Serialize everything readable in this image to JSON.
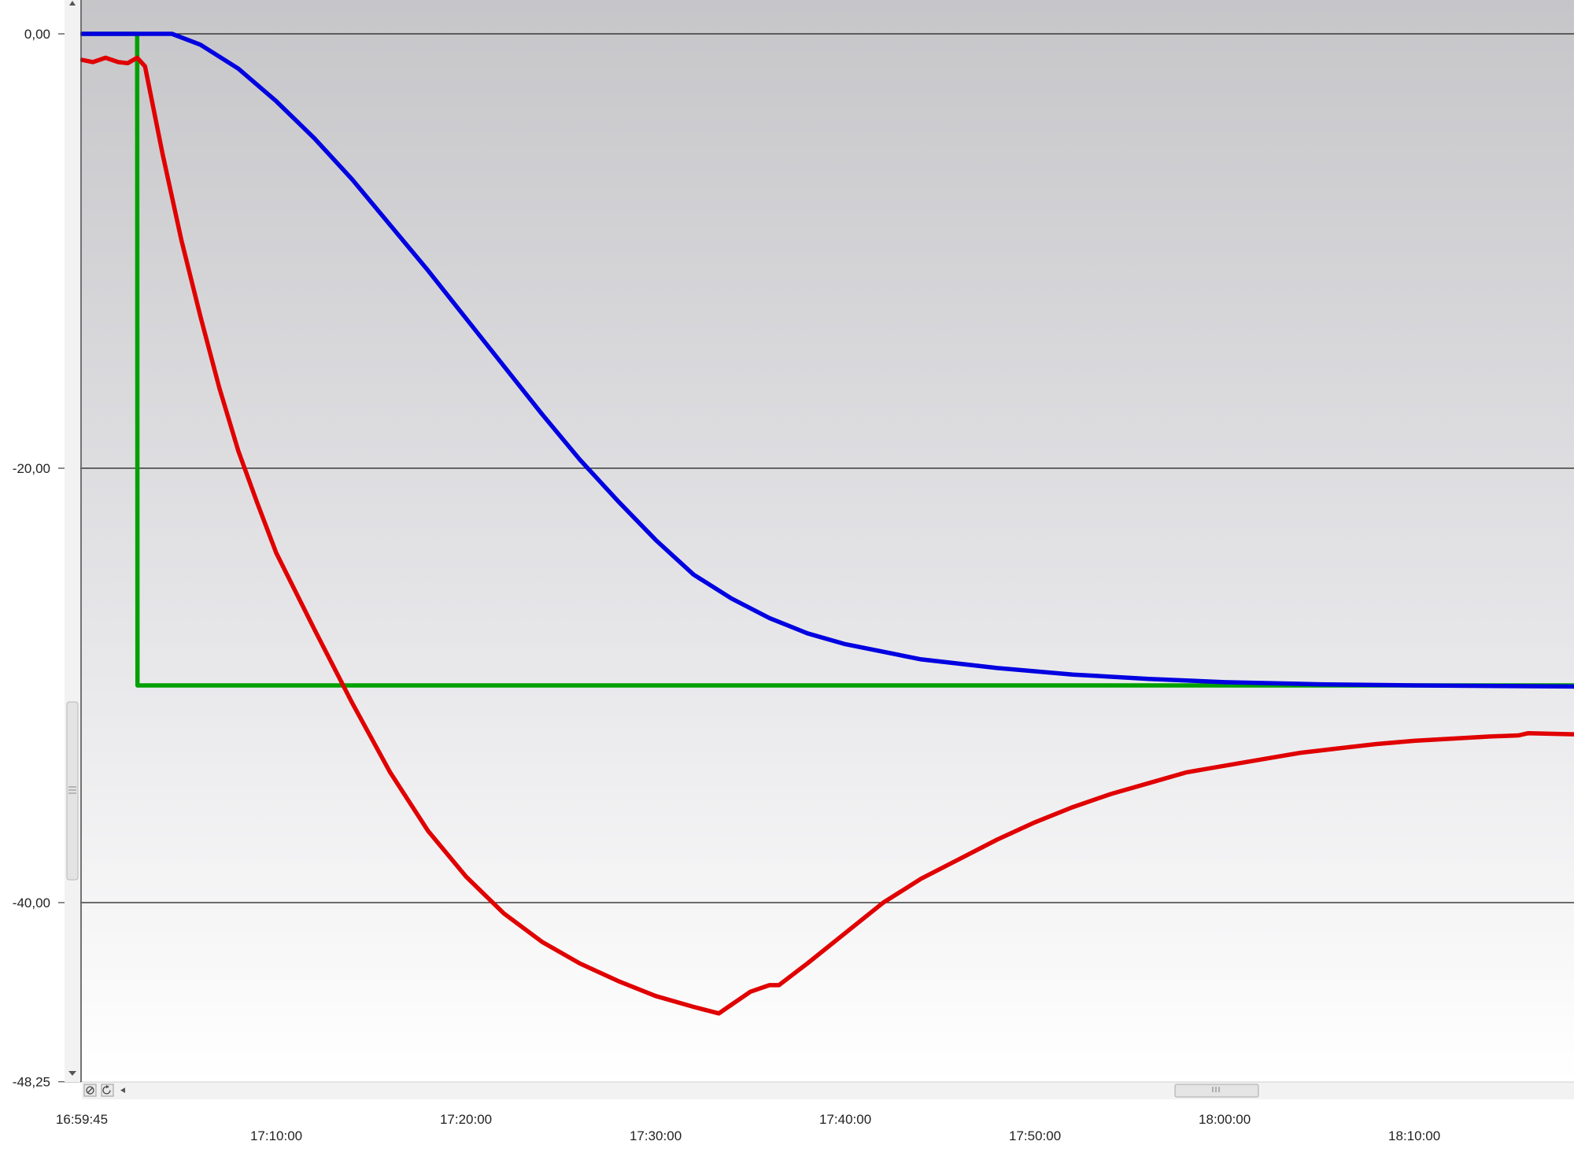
{
  "chart_data": {
    "type": "line",
    "title": "",
    "xlabel": "",
    "ylabel": "",
    "x_range": [
      "16:59:45",
      "18:18:25"
    ],
    "ylim": [
      -48.25,
      1.5
    ],
    "y_ticks": [
      {
        "value": 0,
        "label": "0,00"
      },
      {
        "value": -20,
        "label": "-20,00"
      },
      {
        "value": -40,
        "label": "-40,00"
      },
      {
        "value": -48.25,
        "label": "-48,25"
      }
    ],
    "x_ticks": [
      {
        "time": "16:59:45",
        "label": "16:59:45"
      },
      {
        "time": "17:10:00",
        "label": "17:10:00"
      },
      {
        "time": "17:20:00",
        "label": "17:20:00"
      },
      {
        "time": "17:30:00",
        "label": "17:30:00"
      },
      {
        "time": "17:40:00",
        "label": "17:40:00"
      },
      {
        "time": "17:50:00",
        "label": "17:50:00"
      },
      {
        "time": "18:00:00",
        "label": "18:00:00"
      },
      {
        "time": "18:10:00",
        "label": "18:10:00"
      }
    ],
    "grid": "horizontal",
    "legend": "none",
    "background": "vertical gradient, grey to white",
    "series": [
      {
        "color": "#00a000",
        "points": [
          [
            "16:59:45",
            0.0
          ],
          [
            "17:02:40",
            0.0
          ],
          [
            "17:02:41",
            -30.0
          ],
          [
            "18:18:25",
            -30.0
          ]
        ]
      },
      {
        "color": "#0000e0",
        "points": [
          [
            "16:59:45",
            0.0
          ],
          [
            "17:02:40",
            0.0
          ],
          [
            "17:04:30",
            0.0
          ],
          [
            "17:06:00",
            -0.5
          ],
          [
            "17:08:00",
            -1.6
          ],
          [
            "17:10:00",
            -3.1
          ],
          [
            "17:12:00",
            -4.8
          ],
          [
            "17:14:00",
            -6.7
          ],
          [
            "17:16:00",
            -8.8
          ],
          [
            "17:18:00",
            -10.9
          ],
          [
            "17:20:00",
            -13.1
          ],
          [
            "17:22:00",
            -15.3
          ],
          [
            "17:24:00",
            -17.5
          ],
          [
            "17:26:00",
            -19.6
          ],
          [
            "17:28:00",
            -21.5
          ],
          [
            "17:30:00",
            -23.3
          ],
          [
            "17:32:00",
            -24.9
          ],
          [
            "17:34:00",
            -26.0
          ],
          [
            "17:36:00",
            -26.9
          ],
          [
            "17:38:00",
            -27.6
          ],
          [
            "17:40:00",
            -28.1
          ],
          [
            "17:44:00",
            -28.8
          ],
          [
            "17:48:00",
            -29.2
          ],
          [
            "17:52:00",
            -29.5
          ],
          [
            "17:56:00",
            -29.7
          ],
          [
            "18:00:00",
            -29.85
          ],
          [
            "18:05:00",
            -29.95
          ],
          [
            "18:10:00",
            -30.0
          ],
          [
            "18:18:25",
            -30.05
          ]
        ]
      },
      {
        "color": "#e00000",
        "points": [
          [
            "16:59:45",
            -1.2
          ],
          [
            "17:00:20",
            -1.3
          ],
          [
            "17:01:00",
            -1.1
          ],
          [
            "17:01:40",
            -1.3
          ],
          [
            "17:02:10",
            -1.35
          ],
          [
            "17:02:40",
            -1.1
          ],
          [
            "17:03:05",
            -1.5
          ],
          [
            "17:04:00",
            -5.5
          ],
          [
            "17:05:00",
            -9.5
          ],
          [
            "17:06:00",
            -13.0
          ],
          [
            "17:07:00",
            -16.3
          ],
          [
            "17:08:00",
            -19.2
          ],
          [
            "17:09:00",
            -21.6
          ],
          [
            "17:10:00",
            -23.9
          ],
          [
            "17:12:00",
            -27.4
          ],
          [
            "17:14:00",
            -30.8
          ],
          [
            "17:16:00",
            -34.0
          ],
          [
            "17:18:00",
            -36.7
          ],
          [
            "17:20:00",
            -38.8
          ],
          [
            "17:22:00",
            -40.5
          ],
          [
            "17:24:00",
            -41.8
          ],
          [
            "17:26:00",
            -42.8
          ],
          [
            "17:28:00",
            -43.6
          ],
          [
            "17:30:00",
            -44.3
          ],
          [
            "17:32:00",
            -44.8
          ],
          [
            "17:33:20",
            -45.1
          ],
          [
            "17:34:00",
            -44.7
          ],
          [
            "17:35:00",
            -44.1
          ],
          [
            "17:36:00",
            -43.8
          ],
          [
            "17:36:30",
            -43.8
          ],
          [
            "17:38:00",
            -42.8
          ],
          [
            "17:40:00",
            -41.4
          ],
          [
            "17:42:00",
            -40.0
          ],
          [
            "17:44:00",
            -38.9
          ],
          [
            "17:46:00",
            -38.0
          ],
          [
            "17:48:00",
            -37.1
          ],
          [
            "17:50:00",
            -36.3
          ],
          [
            "17:52:00",
            -35.6
          ],
          [
            "17:54:00",
            -35.0
          ],
          [
            "17:56:00",
            -34.5
          ],
          [
            "17:58:00",
            -34.0
          ],
          [
            "18:00:00",
            -33.7
          ],
          [
            "18:02:00",
            -33.4
          ],
          [
            "18:04:00",
            -33.1
          ],
          [
            "18:06:00",
            -32.9
          ],
          [
            "18:08:00",
            -32.7
          ],
          [
            "18:10:00",
            -32.55
          ],
          [
            "18:12:00",
            -32.45
          ],
          [
            "18:14:00",
            -32.35
          ],
          [
            "18:15:30",
            -32.3
          ],
          [
            "18:16:00",
            -32.2
          ],
          [
            "18:18:25",
            -32.25
          ]
        ]
      }
    ]
  }
}
